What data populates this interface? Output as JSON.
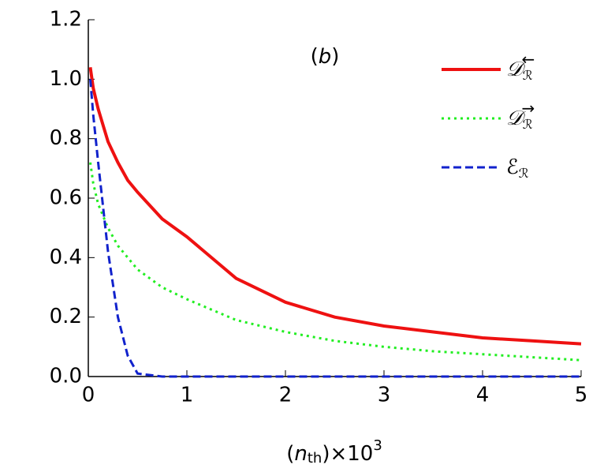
{
  "chart_data": {
    "type": "line",
    "annotation": "b",
    "xlabel": {
      "open": "(",
      "var": "n",
      "sub": "th",
      "times": ")×10",
      "sup": "3"
    },
    "x": [
      0.02,
      0.05,
      0.1,
      0.2,
      0.3,
      0.4,
      0.5,
      0.75,
      1,
      1.5,
      2,
      2.5,
      3,
      3.5,
      4,
      4.5,
      5
    ],
    "series": [
      {
        "name": "𝒟",
        "name_sub": "ℛ",
        "name_sup": "←",
        "color": "#ee1111",
        "dash": "solid",
        "values": [
          1.04,
          0.97,
          0.9,
          0.79,
          0.72,
          0.66,
          0.62,
          0.53,
          0.47,
          0.33,
          0.25,
          0.2,
          0.17,
          0.15,
          0.13,
          0.12,
          0.11
        ]
      },
      {
        "name": "𝒟",
        "name_sub": "ℛ",
        "name_sup": "→",
        "color": "#22ee22",
        "dash": "dotted",
        "values": [
          0.72,
          0.65,
          0.58,
          0.5,
          0.44,
          0.4,
          0.36,
          0.3,
          0.26,
          0.19,
          0.15,
          0.12,
          0.1,
          0.085,
          0.075,
          0.065,
          0.055
        ]
      },
      {
        "name": "ℰ",
        "name_sub": "ℛ",
        "color": "#1122cc",
        "dash": "dashed",
        "values": [
          1.0,
          0.88,
          0.72,
          0.42,
          0.2,
          0.07,
          0.01,
          0,
          0,
          0,
          0,
          0,
          0,
          0,
          0,
          0,
          0
        ]
      }
    ],
    "xlim": [
      0,
      5
    ],
    "xticks": [
      0,
      1,
      2,
      3,
      4,
      5
    ],
    "ylim": [
      0,
      1.2
    ],
    "yticks": [
      {
        "value": 0,
        "label": "0.0"
      },
      0.2,
      0.4,
      0.6,
      0.8,
      {
        "value": 1,
        "label": "1.0"
      },
      1.2
    ]
  }
}
